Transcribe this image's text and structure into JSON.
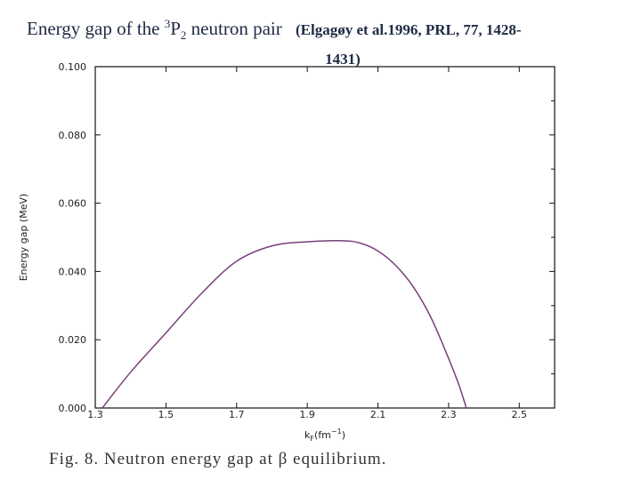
{
  "slide": {
    "title_main": "Energy gap of  the",
    "title_sup": "3",
    "title_p": "P",
    "title_sub": "2",
    "title_rest": " neutron pair",
    "citation_a": "(Elgagøy et al.1996, PRL, 77, 1428-",
    "citation_b": "1431)"
  },
  "caption": "Fig. 8. Neutron energy gap at β equilibrium.",
  "chart_data": {
    "type": "line",
    "title": "",
    "xlabel_main": "k",
    "xlabel_sub": "F",
    "xlabel_rest": "(fm",
    "xlabel_sup": "−1",
    "xlabel_close": ")",
    "ylabel": "Energy gap (MeV)",
    "xlim": [
      1.3,
      2.6
    ],
    "ylim": [
      0.0,
      0.1
    ],
    "xticks": [
      "1.3",
      "1.5",
      "1.7",
      "1.9",
      "2.1",
      "2.3",
      "2.5"
    ],
    "xtick_values": [
      1.3,
      1.5,
      1.7,
      1.9,
      2.1,
      2.3,
      2.5
    ],
    "yticks": [
      "0.000",
      "0.020",
      "0.040",
      "0.060",
      "0.080",
      "0.100"
    ],
    "ytick_values": [
      0.0,
      0.02,
      0.04,
      0.06,
      0.08,
      0.1
    ],
    "grid": false,
    "series": [
      {
        "color": "#7a3f78",
        "x": [
          1.32,
          1.4,
          1.5,
          1.6,
          1.7,
          1.8,
          1.9,
          2.0,
          2.05,
          2.1,
          2.15,
          2.2,
          2.25,
          2.3,
          2.33,
          2.35
        ],
        "y": [
          0.0,
          0.0105,
          0.022,
          0.0335,
          0.043,
          0.0475,
          0.0487,
          0.049,
          0.0483,
          0.046,
          0.0418,
          0.0355,
          0.0265,
          0.0145,
          0.0065,
          0.0
        ]
      }
    ]
  }
}
